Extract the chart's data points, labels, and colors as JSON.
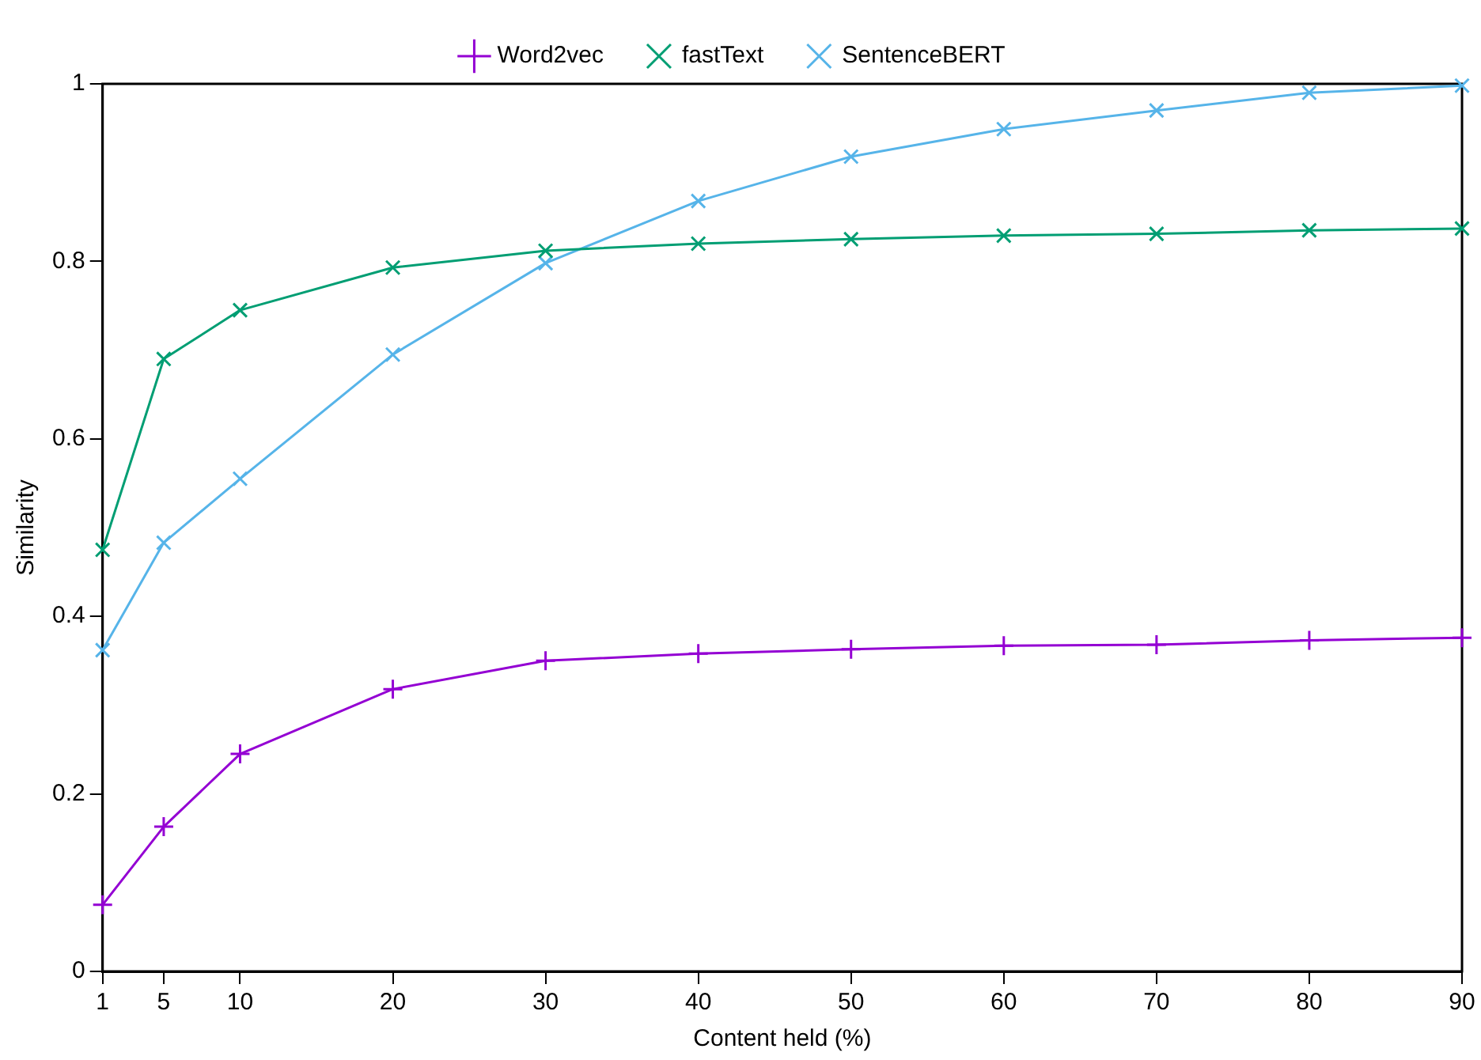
{
  "chart_data": {
    "type": "line",
    "xlabel": "Content held (%)",
    "ylabel": "Similarity",
    "x": [
      1,
      5,
      10,
      20,
      30,
      40,
      50,
      60,
      70,
      80,
      90
    ],
    "xlim": [
      1,
      90
    ],
    "xticks": [
      1,
      5,
      10,
      20,
      30,
      40,
      50,
      60,
      70,
      80,
      90
    ],
    "ylim": [
      0,
      1
    ],
    "yticks": [
      0,
      0.2,
      0.4,
      0.6,
      0.8,
      1
    ],
    "grid": false,
    "legend": "top",
    "line_style": "solid",
    "series": [
      {
        "name": "Word2vec",
        "color": "#9400d3",
        "marker": "plus",
        "values": [
          0.075,
          0.163,
          0.245,
          0.318,
          0.35,
          0.358,
          0.363,
          0.367,
          0.368,
          0.373,
          0.376
        ]
      },
      {
        "name": "fastText",
        "color": "#009e73",
        "marker": "cross",
        "values": [
          0.475,
          0.69,
          0.745,
          0.793,
          0.812,
          0.82,
          0.825,
          0.829,
          0.831,
          0.835,
          0.837
        ]
      },
      {
        "name": "SentenceBERT",
        "color": "#56b4e9",
        "marker": "cross",
        "values": [
          0.362,
          0.483,
          0.555,
          0.695,
          0.798,
          0.868,
          0.918,
          0.949,
          0.97,
          0.99,
          0.998
        ]
      }
    ]
  }
}
